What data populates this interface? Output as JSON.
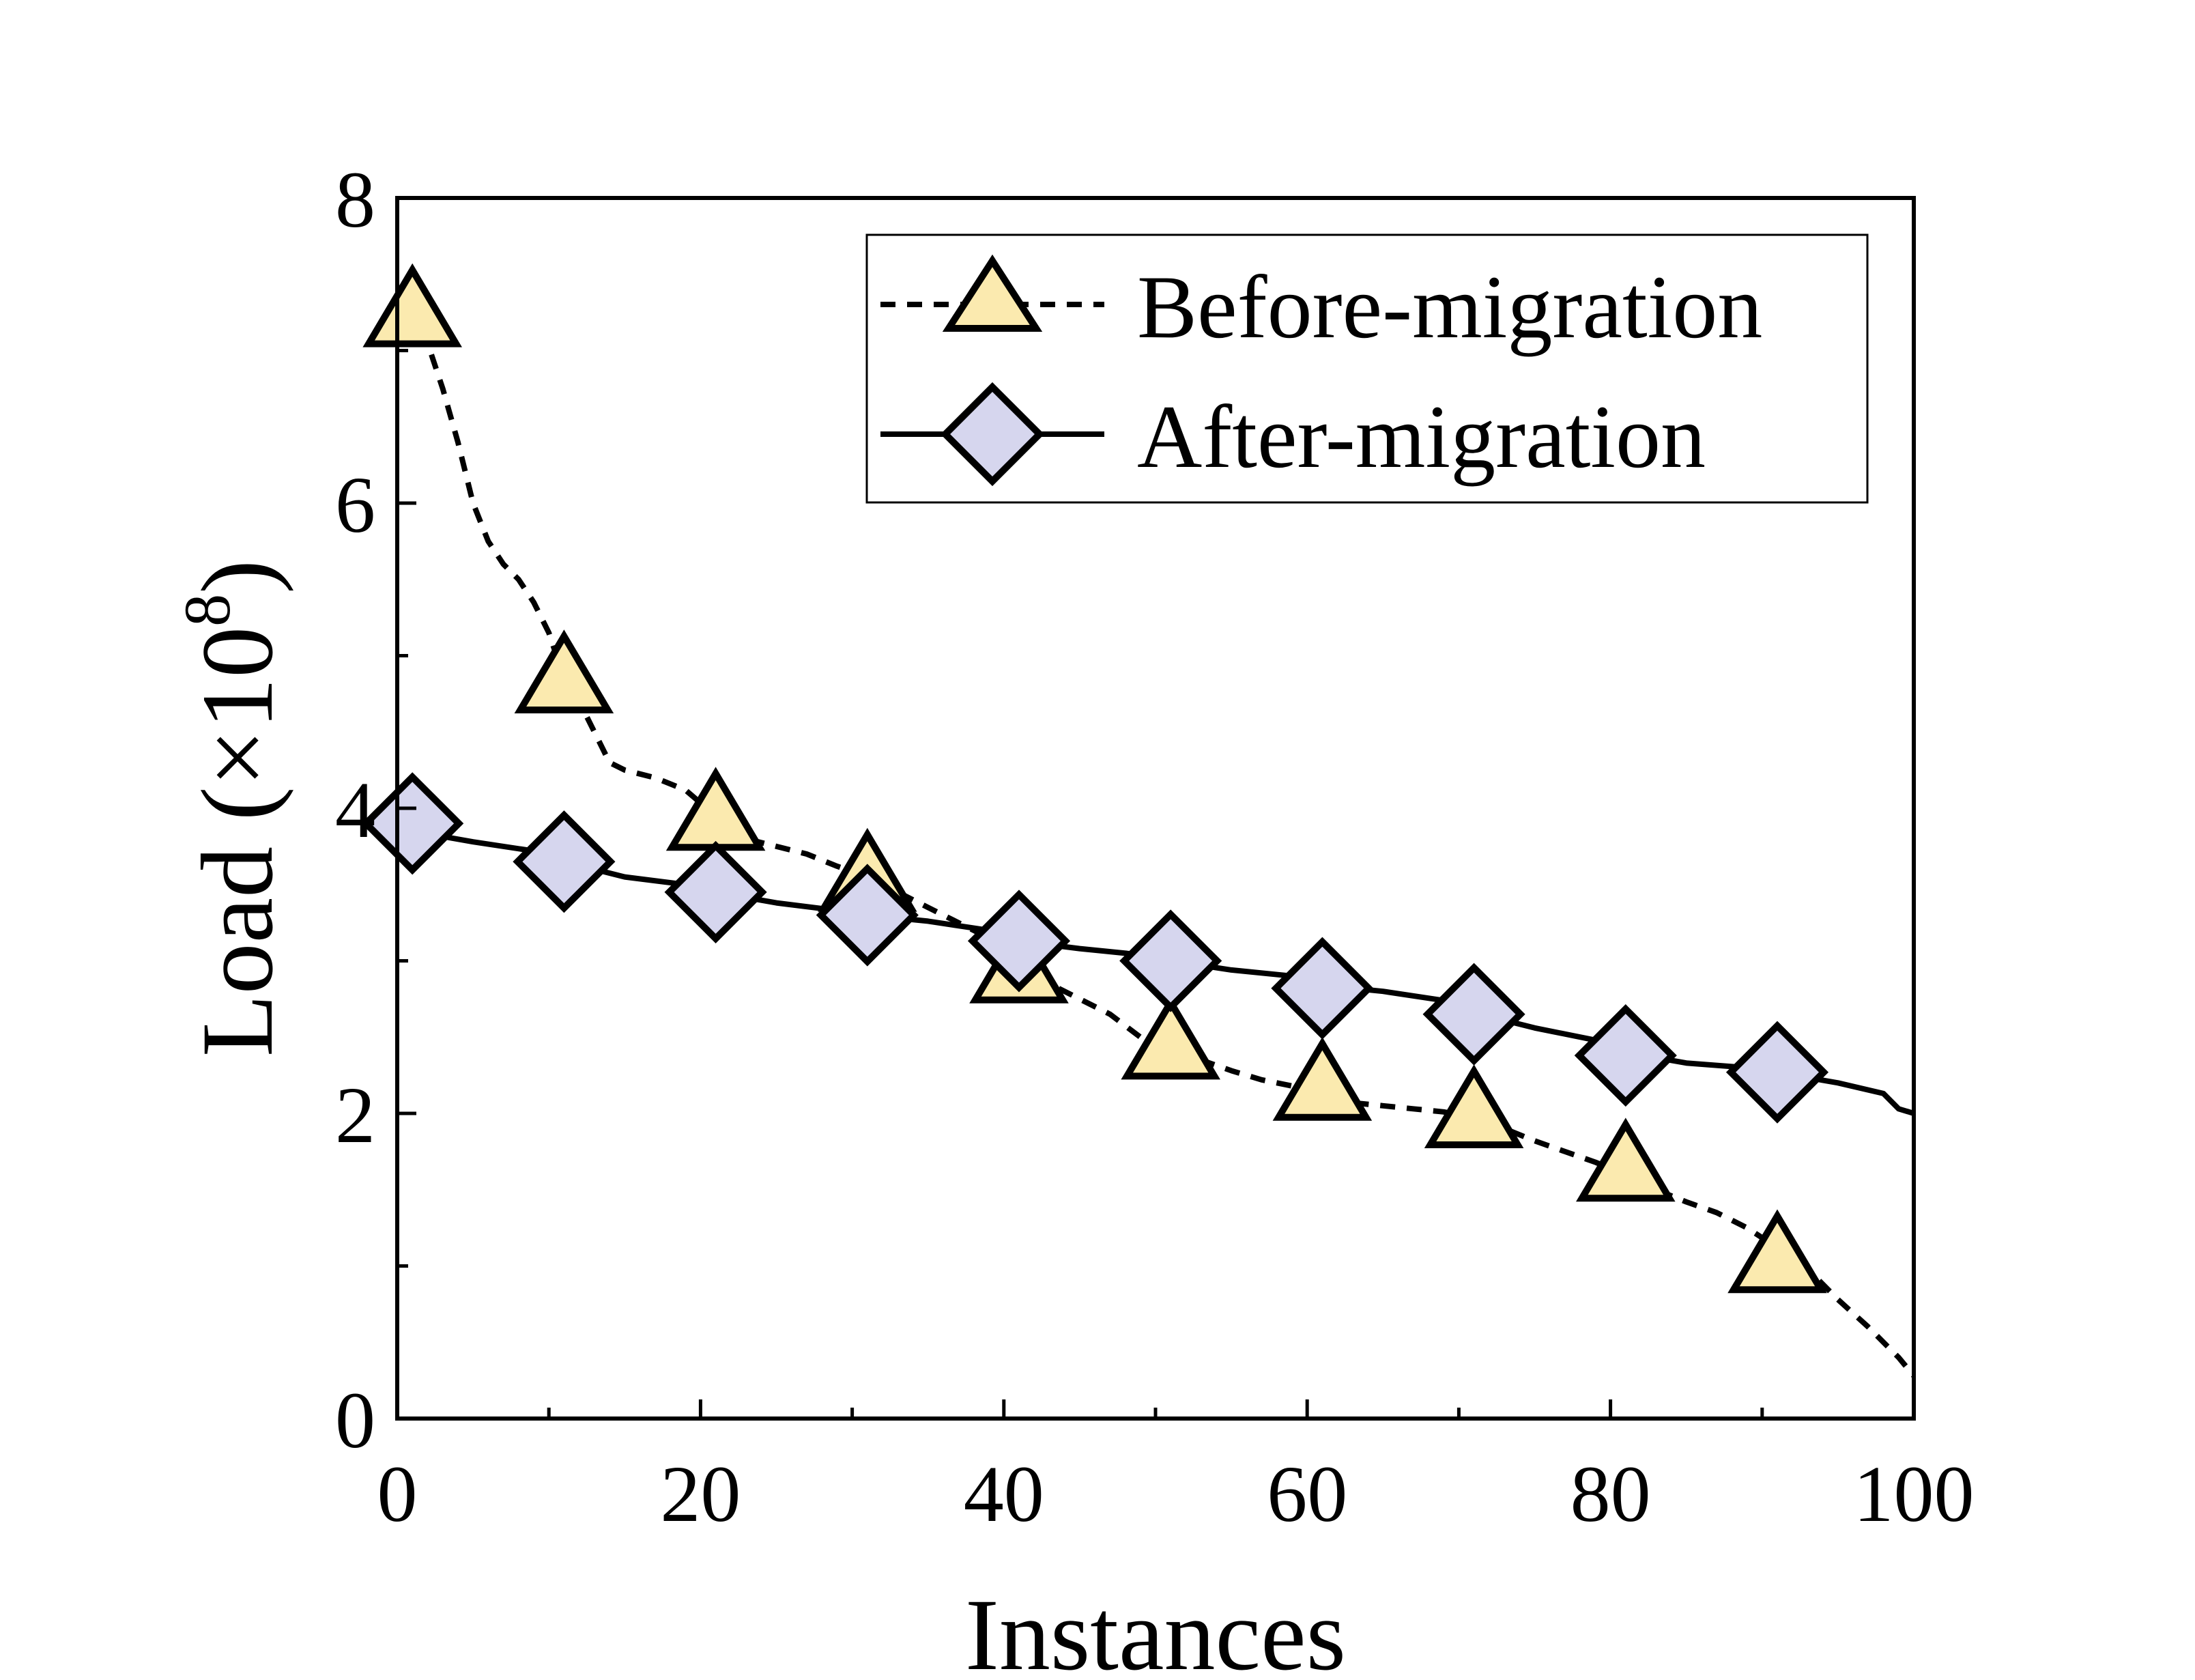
{
  "chart_data": {
    "type": "line",
    "xlabel": "Instances",
    "ylabel": "Load (×10",
    "ylabel_sup": "8",
    "ylabel_close": ")",
    "xlim": [
      0,
      100
    ],
    "ylim": [
      0,
      8
    ],
    "xticks": [
      0,
      20,
      40,
      60,
      80,
      100
    ],
    "yticks": [
      0,
      2,
      4,
      6,
      8
    ],
    "xtick_labels": [
      "0",
      "20",
      "40",
      "60",
      "80",
      "100"
    ],
    "ytick_labels": [
      "0",
      "2",
      "4",
      "6",
      "8"
    ],
    "grid": false,
    "legend_position": "top-right",
    "series": [
      {
        "name": "Before-migration",
        "line_style": "dashed",
        "marker": "triangle",
        "marker_color": "#fbeaaf",
        "curve": [
          [
            1,
            7.3
          ],
          [
            2,
            7.05
          ],
          [
            3,
            6.75
          ],
          [
            4,
            6.4
          ],
          [
            5,
            6.0
          ],
          [
            6,
            5.75
          ],
          [
            7,
            5.6
          ],
          [
            8,
            5.5
          ],
          [
            9,
            5.35
          ],
          [
            10,
            5.15
          ],
          [
            11,
            4.85
          ],
          [
            12,
            4.7
          ],
          [
            13,
            4.5
          ],
          [
            14,
            4.3
          ],
          [
            15,
            4.25
          ],
          [
            17,
            4.2
          ],
          [
            19,
            4.12
          ],
          [
            21,
            3.95
          ],
          [
            23,
            3.8
          ],
          [
            25,
            3.75
          ],
          [
            27,
            3.7
          ],
          [
            29,
            3.62
          ],
          [
            31,
            3.55
          ],
          [
            33,
            3.45
          ],
          [
            35,
            3.35
          ],
          [
            37,
            3.25
          ],
          [
            39,
            3.15
          ],
          [
            41,
            3.0
          ],
          [
            43,
            2.85
          ],
          [
            45,
            2.75
          ],
          [
            47,
            2.65
          ],
          [
            49,
            2.5
          ],
          [
            51,
            2.45
          ],
          [
            53,
            2.35
          ],
          [
            55,
            2.28
          ],
          [
            57,
            2.22
          ],
          [
            59,
            2.18
          ],
          [
            61,
            2.12
          ],
          [
            63,
            2.07
          ],
          [
            65,
            2.05
          ],
          [
            67,
            2.03
          ],
          [
            69,
            2.01
          ],
          [
            71,
            1.97
          ],
          [
            73,
            1.9
          ],
          [
            75,
            1.82
          ],
          [
            77,
            1.75
          ],
          [
            79,
            1.68
          ],
          [
            81,
            1.6
          ],
          [
            83,
            1.5
          ],
          [
            85,
            1.42
          ],
          [
            87,
            1.35
          ],
          [
            89,
            1.25
          ],
          [
            91,
            1.12
          ],
          [
            93,
            0.98
          ],
          [
            95,
            0.78
          ],
          [
            97,
            0.6
          ],
          [
            99,
            0.4
          ],
          [
            100,
            0.28
          ]
        ],
        "markers": [
          [
            1,
            7.25
          ],
          [
            11,
            4.85
          ],
          [
            21,
            3.95
          ],
          [
            31,
            3.55
          ],
          [
            41,
            2.95
          ],
          [
            51,
            2.45
          ],
          [
            61,
            2.18
          ],
          [
            71,
            2.0
          ],
          [
            81,
            1.65
          ],
          [
            91,
            1.05
          ]
        ]
      },
      {
        "name": "After-migration",
        "line_style": "solid",
        "marker": "diamond",
        "marker_color": "#d6d6ee",
        "curve": [
          [
            1,
            3.85
          ],
          [
            5,
            3.78
          ],
          [
            9,
            3.72
          ],
          [
            11,
            3.65
          ],
          [
            15,
            3.55
          ],
          [
            19,
            3.5
          ],
          [
            21,
            3.45
          ],
          [
            25,
            3.38
          ],
          [
            29,
            3.33
          ],
          [
            31,
            3.3
          ],
          [
            35,
            3.26
          ],
          [
            39,
            3.2
          ],
          [
            41,
            3.13
          ],
          [
            45,
            3.08
          ],
          [
            49,
            3.04
          ],
          [
            51,
            3.0
          ],
          [
            55,
            2.94
          ],
          [
            59,
            2.9
          ],
          [
            61,
            2.84
          ],
          [
            65,
            2.8
          ],
          [
            69,
            2.74
          ],
          [
            71,
            2.66
          ],
          [
            75,
            2.56
          ],
          [
            79,
            2.48
          ],
          [
            81,
            2.4
          ],
          [
            85,
            2.33
          ],
          [
            89,
            2.3
          ],
          [
            91,
            2.27
          ],
          [
            95,
            2.2
          ],
          [
            98,
            2.13
          ],
          [
            99,
            2.03
          ],
          [
            100,
            2.0
          ]
        ],
        "markers": [
          [
            1,
            3.9
          ],
          [
            11,
            3.65
          ],
          [
            21,
            3.45
          ],
          [
            31,
            3.3
          ],
          [
            41,
            3.13
          ],
          [
            51,
            3.0
          ],
          [
            61,
            2.82
          ],
          [
            71,
            2.65
          ],
          [
            81,
            2.38
          ],
          [
            91,
            2.27
          ]
        ]
      }
    ]
  }
}
